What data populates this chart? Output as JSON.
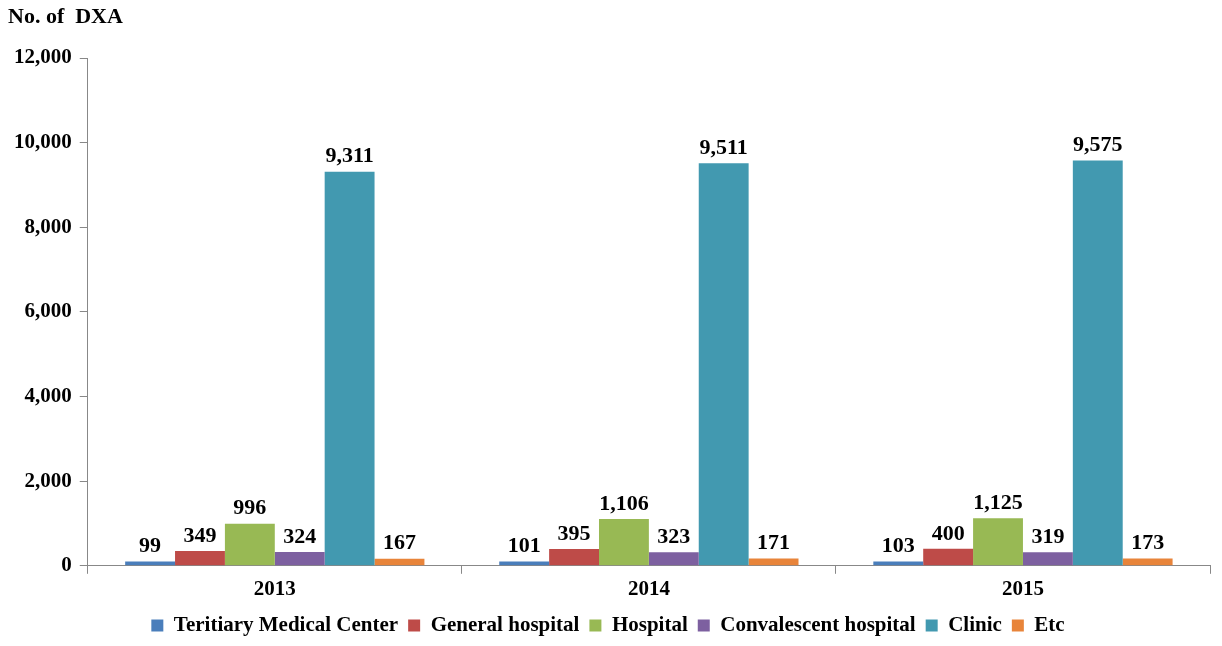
{
  "chart_data": {
    "type": "bar",
    "ylabel": "No. of  DXA",
    "categories": [
      "2013",
      "2014",
      "2015"
    ],
    "series": [
      {
        "name": "Teritiary Medical Center",
        "color": "#4a7ebb",
        "values": [
          99,
          101,
          103
        ],
        "value_labels": [
          "99",
          "101",
          "103"
        ]
      },
      {
        "name": "General hospital",
        "color": "#be4b48",
        "values": [
          349,
          395,
          400
        ],
        "value_labels": [
          "349",
          "395",
          "400"
        ]
      },
      {
        "name": "Hospital",
        "color": "#98b954",
        "values": [
          996,
          1106,
          1125
        ],
        "value_labels": [
          "996",
          "1,106",
          "1,125"
        ]
      },
      {
        "name": "Convalescent hospital",
        "color": "#7d60a0",
        "values": [
          324,
          323,
          319
        ],
        "value_labels": [
          "324",
          "323",
          "319"
        ]
      },
      {
        "name": "Clinic",
        "color": "#4299b0",
        "values": [
          9311,
          9511,
          9575
        ],
        "value_labels": [
          "9,311",
          "9,511",
          "9,575"
        ]
      },
      {
        "name": "Etc",
        "color": "#e8843a",
        "values": [
          167,
          171,
          173
        ],
        "value_labels": [
          "167",
          "171",
          "173"
        ]
      }
    ],
    "ylim": [
      0,
      12000
    ],
    "yticks": [
      {
        "value": 0,
        "label": "0"
      },
      {
        "value": 2000,
        "label": "2,000"
      },
      {
        "value": 4000,
        "label": "4,000"
      },
      {
        "value": 6000,
        "label": "6,000"
      },
      {
        "value": 8000,
        "label": "8,000"
      },
      {
        "value": 10000,
        "label": "10,000"
      },
      {
        "value": 12000,
        "label": "12,000"
      }
    ],
    "grid": false,
    "legend": "bottom"
  }
}
